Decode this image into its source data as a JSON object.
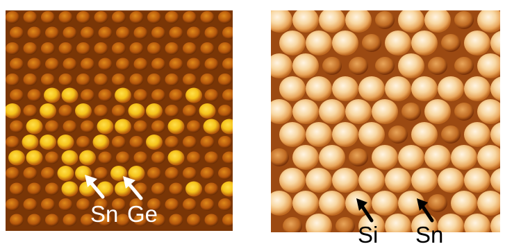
{
  "image": {
    "description_free": true,
    "panels": [
      {
        "name": "left-stm-panel",
        "palette": [
          "#6e2f05",
          "#b4560c",
          "#e08a1a",
          "#f5c21a",
          "#ffe04a"
        ],
        "labels": [
          {
            "key": "sn",
            "text": "Sn",
            "color": "#ffffff"
          },
          {
            "key": "ge",
            "text": "Ge",
            "color": "#ffffff"
          }
        ]
      },
      {
        "name": "right-stm-panel",
        "palette": [
          "#7a3208",
          "#c06a22",
          "#e8a55a",
          "#f8d7a2",
          "#fff4e2"
        ],
        "labels": [
          {
            "key": "si",
            "text": "Si",
            "color": "#000000"
          },
          {
            "key": "sn",
            "text": "Sn",
            "color": "#000000"
          }
        ]
      }
    ]
  },
  "labels": {
    "left_sn": "Sn",
    "left_ge": "Ge",
    "right_si": "Si",
    "right_sn": "Sn"
  }
}
